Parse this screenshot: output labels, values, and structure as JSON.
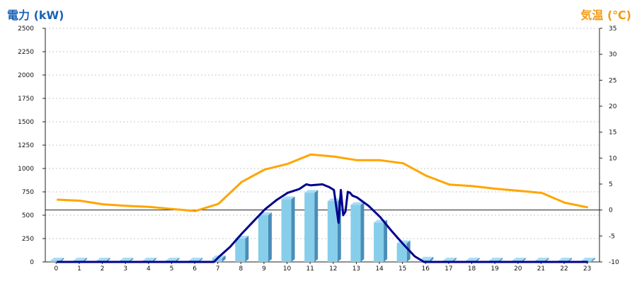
{
  "chart_data": {
    "type": "bar",
    "left_axis_title": "電力 (kW)",
    "right_axis_title": "気温 (℃)",
    "categories": [
      "0",
      "1",
      "2",
      "3",
      "4",
      "5",
      "6",
      "7",
      "8",
      "9",
      "10",
      "11",
      "12",
      "13",
      "14",
      "15",
      "16",
      "17",
      "18",
      "19",
      "20",
      "21",
      "22",
      "23"
    ],
    "y_left": {
      "min": 0,
      "max": 2500,
      "ticks": [
        0,
        250,
        500,
        750,
        1000,
        1250,
        1500,
        1750,
        2000,
        2250,
        2500
      ]
    },
    "y_right": {
      "min": -10,
      "max": 35,
      "ticks": [
        -10,
        -5,
        0,
        5,
        10,
        15,
        20,
        25,
        30,
        35
      ]
    },
    "grid": true,
    "bars": {
      "axis": "left",
      "values": [
        0,
        0,
        0,
        0,
        0,
        0,
        0,
        40,
        250,
        500,
        670,
        740,
        650,
        610,
        420,
        200,
        25,
        0,
        0,
        0,
        0,
        0,
        0,
        0
      ],
      "colors": {
        "front": "#87ceeb",
        "side": "#4a8db8",
        "top": "#a9dcf4"
      }
    },
    "power_line": {
      "axis": "left",
      "color": "#00008b",
      "x": [
        0,
        1,
        2,
        3,
        4,
        5,
        6,
        6.8,
        7,
        7.5,
        8,
        8.5,
        9,
        9.5,
        10,
        10.5,
        10.8,
        11,
        11.5,
        11.8,
        12,
        12.2,
        12.3,
        12.4,
        12.5,
        12.6,
        12.7,
        12.8,
        13,
        13.5,
        14,
        14.5,
        15,
        15.5,
        15.9,
        16,
        17,
        18,
        19,
        20,
        21,
        22,
        23
      ],
      "y": [
        0,
        0,
        0,
        0,
        0,
        0,
        0,
        0,
        50,
        160,
        300,
        430,
        560,
        660,
        740,
        780,
        830,
        820,
        830,
        800,
        770,
        420,
        770,
        500,
        540,
        750,
        740,
        710,
        690,
        600,
        480,
        330,
        190,
        60,
        0,
        0,
        0,
        0,
        0,
        0,
        0,
        0,
        0
      ]
    },
    "temperature_line": {
      "axis": "right",
      "color": "#ffa500",
      "x": [
        0,
        1,
        2,
        3,
        4,
        5,
        6,
        7,
        8,
        9,
        10,
        11,
        12,
        13,
        14,
        15,
        16,
        17,
        18,
        19,
        20,
        21,
        22,
        23
      ],
      "y": [
        2,
        1.8,
        1.1,
        0.8,
        0.6,
        0.2,
        -0.2,
        1.2,
        5.4,
        7.8,
        8.9,
        10.7,
        10.3,
        9.6,
        9.6,
        9.0,
        6.6,
        4.9,
        4.6,
        4.1,
        3.7,
        3.3,
        1.4,
        0.5
      ]
    }
  }
}
